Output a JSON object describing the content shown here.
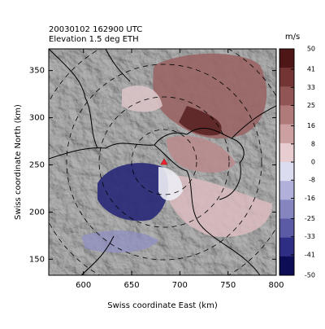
{
  "chart_data": {
    "type": "map",
    "title": "20030102 162900 UTC",
    "subtitle": "Elevation  1.5 deg ETH",
    "xlabel": "Swiss coordinate East (km)",
    "ylabel": "Swiss coordinate North (km)",
    "xlim": [
      564,
      800
    ],
    "xticks": [
      600,
      650,
      700,
      750,
      800
    ],
    "ylim": [
      133,
      373
    ],
    "yticks": [
      150,
      200,
      250,
      300,
      350
    ],
    "colorbar": {
      "label": "m/s",
      "lim": [
        -50,
        50
      ],
      "ticks": [
        50,
        41,
        33,
        25,
        16,
        8,
        0,
        -8,
        -16,
        -25,
        -33,
        -41,
        -50
      ],
      "colors": [
        "#4e1616",
        "#733434",
        "#925555",
        "#b07a7a",
        "#cc9fa0",
        "#e8cdd0",
        "#dcdcf0",
        "#b0b0da",
        "#8585c0",
        "#5a5aa5",
        "#2e2e85",
        "#0d0d55"
      ]
    }
  }
}
